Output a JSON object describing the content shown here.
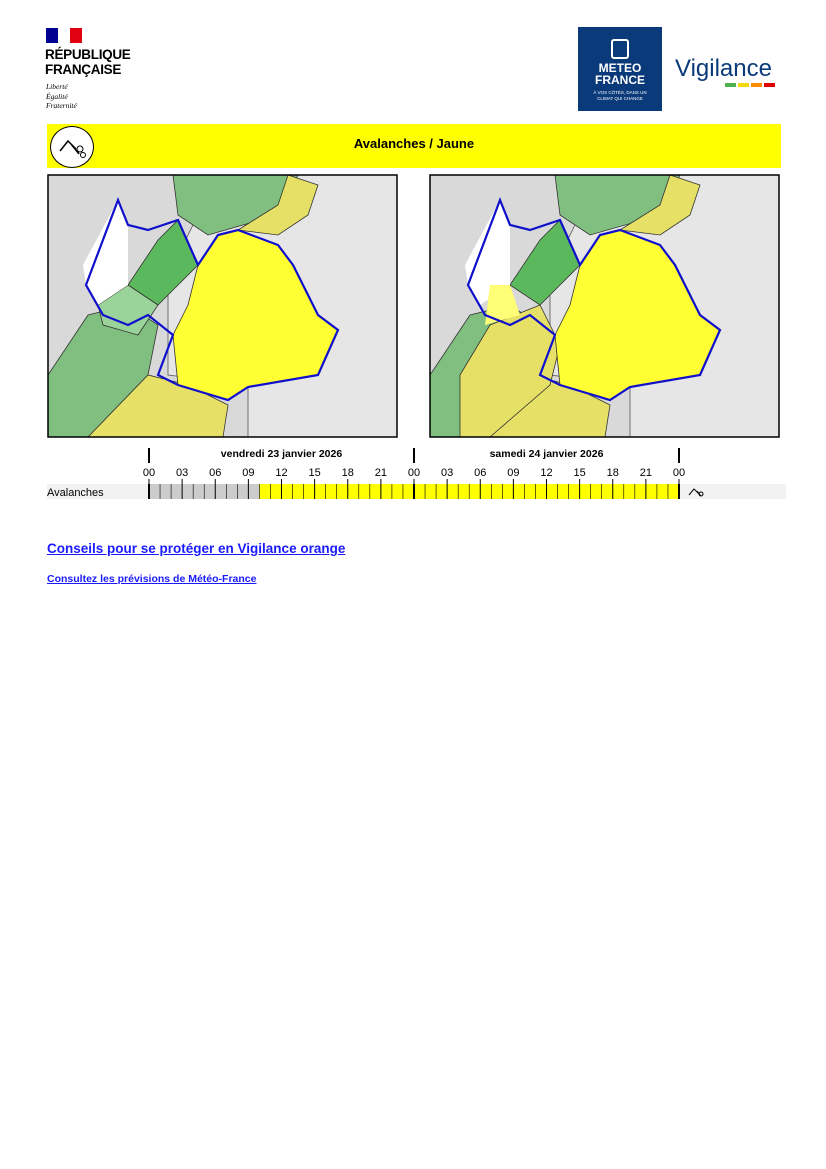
{
  "header": {
    "republique": {
      "line1": "RÉPUBLIQUE",
      "line2": "FRANÇAISE",
      "motto": [
        "Liberté",
        "Égalité",
        "Fraternité"
      ]
    },
    "meteo_france": {
      "line1": "METEO",
      "line2": "FRANCE",
      "tagline1": "À VOS CÔTÉS, DANS UN",
      "tagline2": "CLIMAT QUI CHANGE"
    },
    "vigilance": "Vigilance"
  },
  "banner": {
    "title": "Avalanches / Jaune"
  },
  "timeline": {
    "days": [
      "vendredi 23 janvier 2026",
      "samedi 24 janvier 2026"
    ],
    "hours": [
      "00",
      "03",
      "06",
      "09",
      "12",
      "15",
      "18",
      "21",
      "00",
      "03",
      "06",
      "09",
      "12",
      "15",
      "18",
      "21",
      "00"
    ],
    "row_label": "Avalanches"
  },
  "links": [
    "Conseils pour se protéger en Vigilance orange",
    "Consultez les prévisions de Météo-France"
  ]
}
